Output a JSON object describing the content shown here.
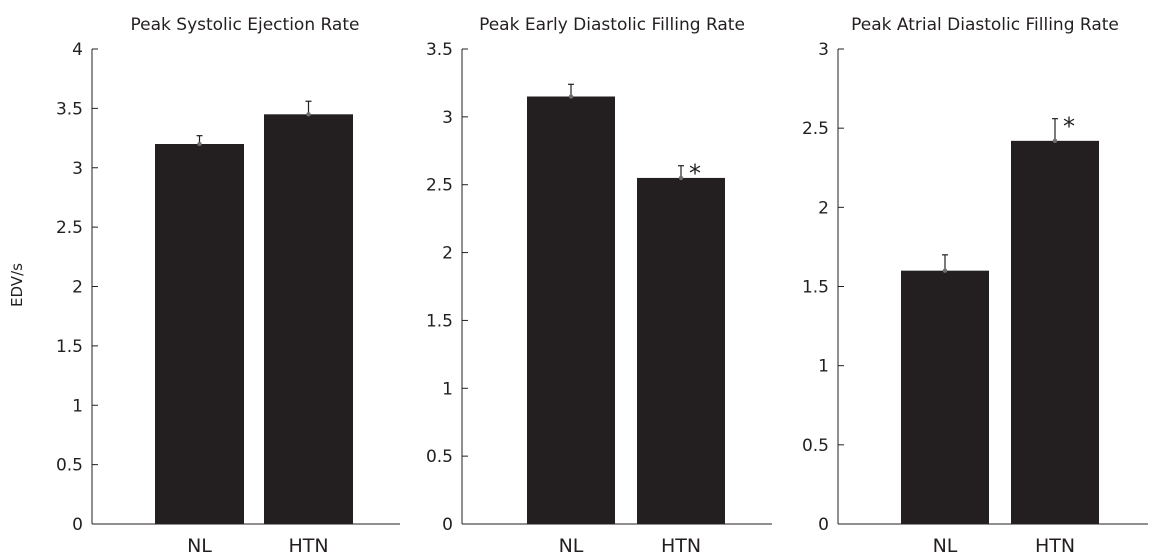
{
  "chart_data": [
    {
      "type": "bar",
      "title": "Peak Systolic Ejection Rate",
      "ylabel": "EDV/s",
      "categories": [
        "NL",
        "HTN"
      ],
      "values": [
        3.2,
        3.45
      ],
      "errors": [
        0.07,
        0.11
      ],
      "annotations": [
        "",
        ""
      ],
      "ylim": [
        0,
        4
      ],
      "yticks": [
        "0",
        "0.5",
        "1",
        "1.5",
        "2",
        "2.5",
        "3",
        "3.5",
        "4"
      ],
      "bar_color": "#231f20"
    },
    {
      "type": "bar",
      "title": "Peak Early Diastolic Filling Rate",
      "ylabel": "",
      "categories": [
        "NL",
        "HTN"
      ],
      "values": [
        3.15,
        2.55
      ],
      "errors": [
        0.09,
        0.09
      ],
      "annotations": [
        "",
        "*"
      ],
      "ylim": [
        0,
        3.5
      ],
      "yticks": [
        "0",
        "0.5",
        "1",
        "1.5",
        "2",
        "2.5",
        "3",
        "3.5"
      ],
      "bar_color": "#231f20"
    },
    {
      "type": "bar",
      "title": "Peak Atrial Diastolic Filling Rate",
      "ylabel": "",
      "categories": [
        "NL",
        "HTN"
      ],
      "values": [
        1.6,
        2.42
      ],
      "errors": [
        0.1,
        0.14
      ],
      "annotations": [
        "",
        "*"
      ],
      "ylim": [
        0,
        3
      ],
      "yticks": [
        "0",
        "0.5",
        "1",
        "1.5",
        "2",
        "2.5",
        "3"
      ],
      "bar_color": "#231f20"
    }
  ]
}
